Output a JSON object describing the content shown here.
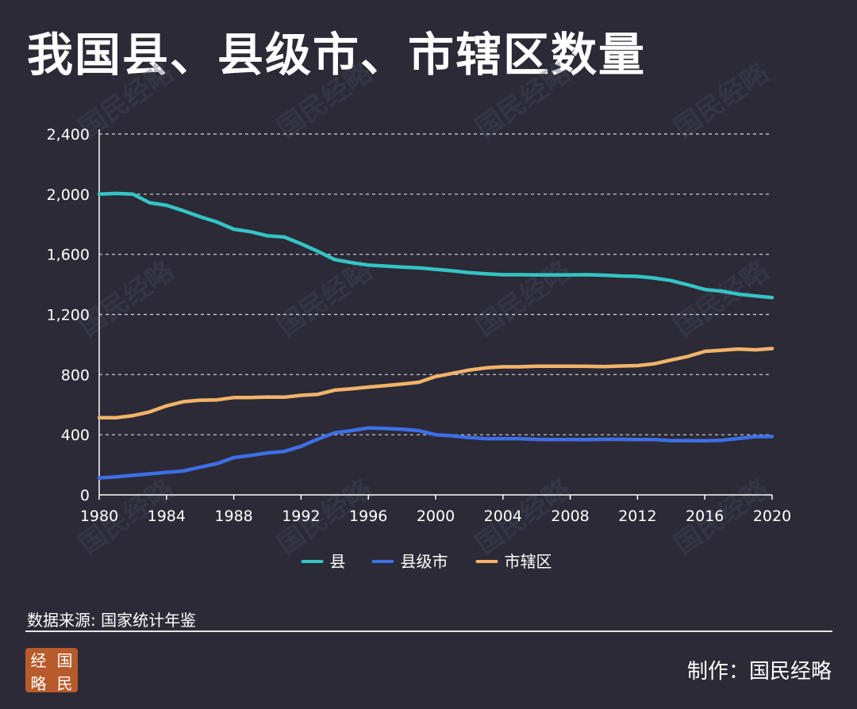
{
  "page": {
    "title": "我国县、县级市、市辖区数量",
    "source": "数据来源: 国家统计年鉴",
    "credit": "制作：国民经略",
    "logo_chars": [
      "经",
      "国",
      "略",
      "民"
    ],
    "watermark": "国民经略"
  },
  "colors": {
    "background": "#2b2a36",
    "grid": "#d9d9d9",
    "county": "#35c4c4",
    "county_city": "#3d6fe6",
    "district": "#f2b46a"
  },
  "chart_data": {
    "type": "line",
    "title": "我国县、县级市、市辖区数量",
    "x": [
      1980,
      1981,
      1982,
      1983,
      1984,
      1985,
      1986,
      1987,
      1988,
      1989,
      1990,
      1991,
      1992,
      1993,
      1994,
      1995,
      1996,
      1997,
      1998,
      1999,
      2000,
      2001,
      2002,
      2003,
      2004,
      2005,
      2006,
      2007,
      2008,
      2009,
      2010,
      2011,
      2012,
      2013,
      2014,
      2015,
      2016,
      2017,
      2018,
      2019,
      2020
    ],
    "xticks": [
      "1980",
      "1984",
      "1988",
      "1992",
      "1996",
      "2000",
      "2004",
      "2008",
      "2012",
      "2016",
      "2020"
    ],
    "yticks": [
      "0",
      "400",
      "800",
      "1,200",
      "1,600",
      "2,000",
      "2,400"
    ],
    "ylim": [
      0,
      2400
    ],
    "xlim": [
      1980,
      2020
    ],
    "grid": "horizontal dashed",
    "legend_position": "bottom-center",
    "series": [
      {
        "name": "县",
        "color": "#35c4c4",
        "values": [
          2000,
          2005,
          2000,
          1943,
          1926,
          1890,
          1850,
          1815,
          1767,
          1750,
          1723,
          1715,
          1670,
          1620,
          1565,
          1545,
          1528,
          1522,
          1515,
          1510,
          1500,
          1490,
          1478,
          1470,
          1464,
          1464,
          1463,
          1463,
          1463,
          1464,
          1461,
          1456,
          1453,
          1442,
          1425,
          1397,
          1366,
          1355,
          1335,
          1323,
          1312
        ]
      },
      {
        "name": "县级市",
        "color": "#3d6fe6",
        "values": [
          113,
          120,
          130,
          140,
          150,
          159,
          184,
          208,
          248,
          262,
          279,
          289,
          323,
          371,
          413,
          427,
          445,
          442,
          437,
          427,
          400,
          393,
          381,
          374,
          374,
          374,
          369,
          368,
          368,
          367,
          370,
          369,
          368,
          368,
          361,
          361,
          360,
          363,
          375,
          387,
          388
        ]
      },
      {
        "name": "市辖区",
        "color": "#f2b46a",
        "values": [
          514,
          513,
          527,
          552,
          592,
          620,
          630,
          632,
          647,
          647,
          651,
          650,
          662,
          669,
          697,
          706,
          717,
          727,
          737,
          749,
          787,
          808,
          830,
          845,
          852,
          852,
          856,
          856,
          856,
          855,
          853,
          857,
          860,
          872,
          897,
          921,
          954,
          962,
          970,
          965,
          973
        ]
      }
    ]
  }
}
